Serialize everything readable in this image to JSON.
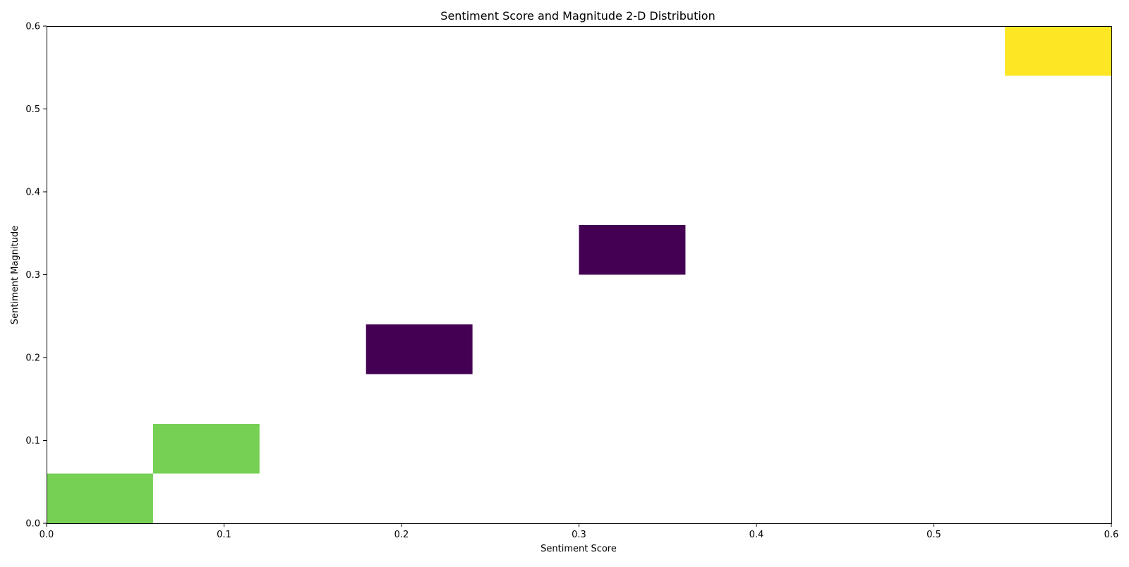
{
  "chart_data": {
    "type": "heatmap",
    "title": "Sentiment Score and Magnitude 2-D Distribution",
    "xlabel": "Sentiment Score",
    "ylabel": "Sentiment Magnitude",
    "xlim": [
      0.0,
      0.6
    ],
    "ylim": [
      0.0,
      0.6
    ],
    "x_ticks": [
      "0.0",
      "0.1",
      "0.2",
      "0.3",
      "0.4",
      "0.5",
      "0.6"
    ],
    "y_ticks": [
      "0.0",
      "0.1",
      "0.2",
      "0.3",
      "0.4",
      "0.5",
      "0.6"
    ],
    "bin_width_x": 0.06,
    "bin_width_y": 0.06,
    "grid": false,
    "colormap": "viridis",
    "cells": [
      {
        "x_start": 0.0,
        "x_end": 0.06,
        "y_start": 0.0,
        "y_end": 0.06,
        "color": "#75d054"
      },
      {
        "x_start": 0.06,
        "x_end": 0.12,
        "y_start": 0.06,
        "y_end": 0.12,
        "color": "#75d054"
      },
      {
        "x_start": 0.18,
        "x_end": 0.24,
        "y_start": 0.18,
        "y_end": 0.24,
        "color": "#440154"
      },
      {
        "x_start": 0.3,
        "x_end": 0.36,
        "y_start": 0.3,
        "y_end": 0.36,
        "color": "#440154"
      },
      {
        "x_start": 0.54,
        "x_end": 0.6,
        "y_start": 0.54,
        "y_end": 0.6,
        "color": "#fde725"
      }
    ]
  }
}
